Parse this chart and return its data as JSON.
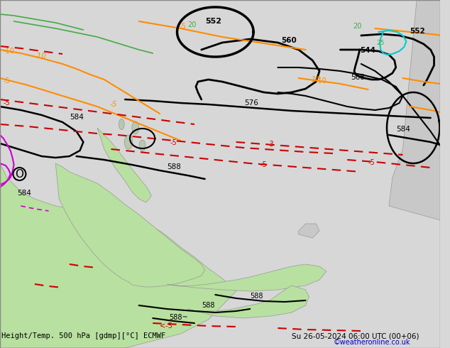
{
  "title_left": "Height/Temp. 500 hPa [gdmp][°C] ECMWF",
  "title_right": "Su 26-05-2024 06:00 UTC (00+06)",
  "credit": "©weatheronline.co.uk",
  "bg_color": "#d8d8d8",
  "land_color_green": "#b8e0a0",
  "land_color_gray": "#c8c8c8",
  "contour_black": "#000000",
  "contour_orange": "#ff8c00",
  "contour_red_dashed": "#cc0000",
  "contour_cyan": "#00cccc",
  "contour_magenta": "#cc00cc",
  "text_color_main": "#000000",
  "text_color_credit": "#0000cc",
  "figsize": [
    6.34,
    4.9
  ],
  "dpi": 100
}
